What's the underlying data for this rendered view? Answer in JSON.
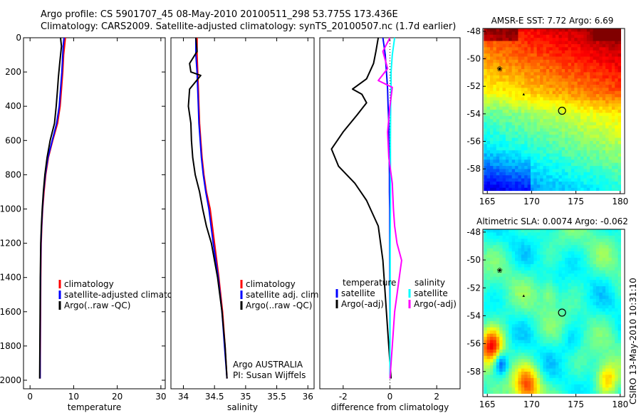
{
  "title": {
    "line1": "Argo profile: CS 5901707_45 08-May-2010 20100511_298 53.775S 173.436E",
    "line2": "Climatology: CARS2009. Satellite-adjusted climatology: synTS_20100507.nc (1.7d earlier)"
  },
  "footer_text": "CSIRO 13-May-2010 10:31:10",
  "colors": {
    "climatology": "#ff0000",
    "satellite": "#0000ff",
    "argo": "#000000",
    "sat_sal_diff": "#00ffff",
    "argo_sal_diff": "#ff00ff"
  },
  "chart_data": [
    {
      "type": "line",
      "xlabel": "temperature",
      "ylabel": "",
      "xlim": [
        -1.5,
        31
      ],
      "ylim": [
        2050,
        0
      ],
      "xticks": [
        0,
        10,
        20,
        30
      ],
      "yticks": [
        0,
        200,
        400,
        600,
        800,
        1000,
        1200,
        1400,
        1600,
        1800,
        2000
      ],
      "legend": {
        "placement": "lower-left",
        "entries": [
          "climatology",
          "satellite-adjusted climatology",
          "Argo(..raw -QC)"
        ]
      },
      "series": [
        {
          "name": "climatology",
          "color_key": "climatology",
          "x": [
            8.1,
            7.9,
            7.7,
            7.5,
            7.2,
            6.9,
            6.3,
            5.2,
            4.2,
            3.6,
            3.2,
            2.9,
            2.7,
            2.55,
            2.45,
            2.4,
            2.35,
            2.3
          ],
          "y": [
            0,
            50,
            100,
            200,
            300,
            400,
            500,
            600,
            700,
            800,
            900,
            1000,
            1100,
            1200,
            1400,
            1600,
            1800,
            1990
          ]
        },
        {
          "name": "satellite-adjusted climatology",
          "color_key": "satellite",
          "x": [
            7.8,
            7.6,
            7.5,
            7.3,
            7.0,
            6.7,
            6.1,
            5.1,
            4.1,
            3.5,
            3.1,
            2.85,
            2.65,
            2.5,
            2.4,
            2.35,
            2.3,
            2.3
          ],
          "y": [
            0,
            50,
            100,
            200,
            300,
            400,
            500,
            600,
            700,
            800,
            900,
            1000,
            1100,
            1200,
            1400,
            1600,
            1800,
            1990
          ]
        },
        {
          "name": "Argo(..raw -QC)",
          "color_key": "argo",
          "x": [
            7.0,
            7.2,
            6.8,
            6.5,
            6.3,
            6.0,
            5.6,
            4.6,
            3.9,
            3.4,
            3.05,
            2.8,
            2.6,
            2.45,
            2.35,
            2.3,
            2.25,
            2.2
          ],
          "y": [
            0,
            50,
            150,
            230,
            300,
            400,
            500,
            600,
            700,
            800,
            900,
            1000,
            1100,
            1200,
            1400,
            1600,
            1800,
            1990
          ]
        }
      ]
    },
    {
      "type": "line",
      "xlabel": "salinity",
      "ylabel": "",
      "xlim": [
        33.8,
        36.1
      ],
      "ylim": [
        2050,
        0
      ],
      "xticks": [
        34,
        34.5,
        35,
        35.5,
        36
      ],
      "yticks": [],
      "legend": {
        "placement": "lower-right",
        "entries": [
          "climatology",
          "satellite adj. clim.",
          "Argo(..raw -QC)"
        ]
      },
      "annotations": [
        "Argo AUSTRALIA",
        "PI: Susan Wijffels"
      ],
      "series": [
        {
          "name": "climatology",
          "color_key": "climatology",
          "x": [
            34.22,
            34.22,
            34.23,
            34.24,
            34.25,
            34.26,
            34.28,
            34.3,
            34.33,
            34.37,
            34.43,
            34.5,
            34.57,
            34.63,
            34.67,
            34.7
          ],
          "y": [
            0,
            100,
            200,
            300,
            400,
            500,
            600,
            700,
            800,
            900,
            1000,
            1200,
            1400,
            1600,
            1800,
            1990
          ]
        },
        {
          "name": "satellite adj. clim.",
          "color_key": "satellite",
          "x": [
            34.2,
            34.2,
            34.22,
            34.23,
            34.24,
            34.25,
            34.27,
            34.29,
            34.32,
            34.36,
            34.41,
            34.48,
            34.56,
            34.62,
            34.66,
            34.7
          ],
          "y": [
            0,
            100,
            200,
            300,
            400,
            500,
            600,
            700,
            800,
            900,
            1000,
            1200,
            1400,
            1600,
            1800,
            1990
          ]
        },
        {
          "name": "Argo(..raw -QC)",
          "color_key": "argo",
          "x": [
            34.2,
            34.22,
            34.1,
            34.12,
            34.28,
            34.1,
            34.08,
            34.12,
            34.13,
            34.15,
            34.19,
            34.26,
            34.31,
            34.37,
            34.45,
            34.55,
            34.62,
            34.67,
            34.7
          ],
          "y": [
            0,
            80,
            150,
            200,
            220,
            300,
            400,
            500,
            600,
            700,
            800,
            900,
            1000,
            1100,
            1200,
            1400,
            1600,
            1800,
            1990
          ]
        }
      ]
    },
    {
      "type": "line",
      "xlabel": "difference from climatology",
      "ylabel": "",
      "xlim": [
        -3,
        3
      ],
      "ylim": [
        2050,
        0
      ],
      "xticks": [
        -2,
        0,
        2
      ],
      "yticks": [],
      "legend": {
        "placement": "lower-center",
        "groups": [
          {
            "heading": "temperature",
            "entries": [
              "satellite",
              "Argo(-adj)"
            ]
          },
          {
            "heading": "salinity",
            "entries": [
              "satellite",
              "Argo(-adj)"
            ]
          }
        ]
      },
      "series": [
        {
          "name": "temperature satellite",
          "color_key": "satellite",
          "x": [
            -0.3,
            -0.25,
            -0.2,
            -0.15,
            -0.1,
            -0.08,
            -0.05,
            -0.05,
            -0.03,
            -0.02,
            -0.02,
            -0.01,
            -0.01,
            0,
            0
          ],
          "y": [
            0,
            50,
            100,
            200,
            300,
            400,
            500,
            600,
            700,
            800,
            900,
            1000,
            1200,
            1600,
            1990
          ]
        },
        {
          "name": "temperature Argo(-adj)",
          "color_key": "argo",
          "x": [
            -0.5,
            -0.6,
            -0.7,
            -1.0,
            -1.6,
            -1.2,
            -1.0,
            -1.4,
            -2.0,
            -2.5,
            -2.2,
            -1.5,
            -1.0,
            -0.5,
            -0.3,
            -0.2,
            -0.1,
            0,
            0.05
          ],
          "y": [
            0,
            80,
            150,
            240,
            300,
            330,
            380,
            450,
            550,
            650,
            750,
            850,
            950,
            1100,
            1300,
            1500,
            1700,
            1900,
            1990
          ]
        },
        {
          "name": "salinity satellite",
          "color_key": "sat_sal_diff",
          "x": [
            0.2,
            0.1,
            0.05,
            0.05,
            0.03,
            0.02,
            0.02,
            0.02,
            0.01,
            0.01,
            0,
            0
          ],
          "y": [
            0,
            100,
            200,
            300,
            400,
            600,
            800,
            1000,
            1200,
            1500,
            1800,
            1990
          ]
        },
        {
          "name": "salinity Argo(-adj)",
          "color_key": "argo_sal_diff",
          "x": [
            0,
            -0.3,
            -0.1,
            -0.5,
            0.1,
            0.0,
            -0.1,
            -0.05,
            0.1,
            0.15,
            0.2,
            0.3,
            0.5,
            0.4,
            0.3,
            0.2,
            0.1,
            0
          ],
          "y": [
            0,
            80,
            180,
            250,
            290,
            400,
            550,
            700,
            850,
            1000,
            1100,
            1200,
            1300,
            1400,
            1500,
            1600,
            1800,
            1990
          ]
        }
      ]
    },
    {
      "type": "heatmap",
      "title": "AMSR-E SST: 7.72 Argo: 6.69",
      "xticks": [
        165,
        170,
        175,
        180
      ],
      "yticks": [
        -48,
        -50,
        -52,
        -54,
        -56,
        -58
      ],
      "xlim": [
        164.5,
        180.5
      ],
      "ylim": [
        -59.8,
        -47.8
      ],
      "marker": {
        "lon": 173.436,
        "lat": -53.775
      }
    },
    {
      "type": "heatmap",
      "title": "Altimetric SLA: 0.0074 Argo: -0.062",
      "xticks": [
        165,
        170,
        175,
        180
      ],
      "yticks": [
        -48,
        -50,
        -52,
        -54,
        -56,
        -58
      ],
      "xlim": [
        164.5,
        180.5
      ],
      "ylim": [
        -59.8,
        -47.8
      ],
      "marker": {
        "lon": 173.436,
        "lat": -53.775
      }
    }
  ]
}
